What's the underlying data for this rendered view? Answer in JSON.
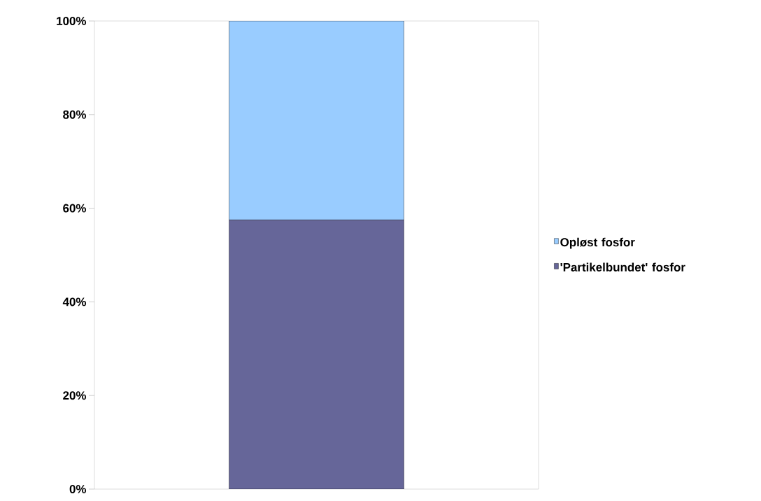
{
  "chart_data": {
    "type": "bar",
    "stacked": true,
    "categories": [
      null
    ],
    "series": [
      {
        "name": "'Partikelbundet' fosfor",
        "color": "#666699",
        "values": [
          57.5
        ]
      },
      {
        "name": "Opløst fosfor",
        "color": "#99ccff",
        "values": [
          42.5
        ]
      }
    ],
    "ylim": [
      0,
      100
    ],
    "yticks": [
      {
        "value": 0,
        "label": "0%"
      },
      {
        "value": 20,
        "label": "20%"
      },
      {
        "value": 40,
        "label": "40%"
      },
      {
        "value": 60,
        "label": "60%"
      },
      {
        "value": 80,
        "label": "80%"
      },
      {
        "value": 100,
        "label": "100%"
      }
    ],
    "grid": false,
    "legend": "right"
  }
}
